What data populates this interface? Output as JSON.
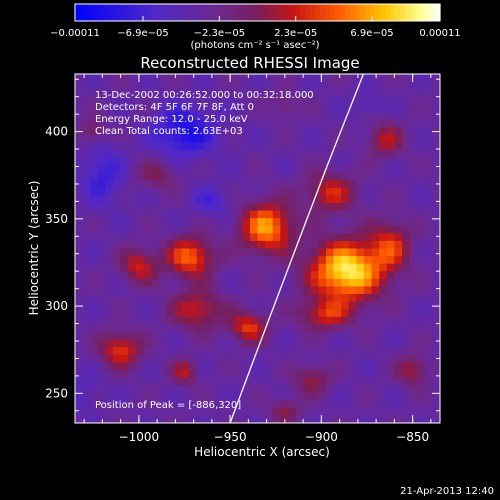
{
  "chart_data": {
    "type": "heatmap",
    "title": "Reconstructed RHESSI Image",
    "xlabel": "Heliocentric X (arcsec)",
    "ylabel": "Heliocentric Y (arcsec)",
    "xlim": [
      -1035,
      -835
    ],
    "ylim": [
      233,
      433
    ],
    "xticks": [
      {
        "value": -1000,
        "label": "−1000"
      },
      {
        "value": -950,
        "label": "−950"
      },
      {
        "value": -900,
        "label": "−900"
      },
      {
        "value": -850,
        "label": "−850"
      }
    ],
    "yticks": [
      {
        "value": 250,
        "label": "250"
      },
      {
        "value": 300,
        "label": "300"
      },
      {
        "value": 350,
        "label": "350"
      },
      {
        "value": 400,
        "label": "400"
      }
    ],
    "colorbar": {
      "range": [
        -0.00011,
        0.00011
      ],
      "ticks": [
        {
          "value": -0.00011,
          "label": "−0.00011"
        },
        {
          "value": -6.9e-05,
          "label": "−6.9e−05"
        },
        {
          "value": -2.3e-05,
          "label": "−2.3e−05"
        },
        {
          "value": 2.3e-05,
          "label": "2.3e−05"
        },
        {
          "value": 6.9e-05,
          "label": "6.9e−05"
        },
        {
          "value": 0.00011,
          "label": "0.00011"
        }
      ],
      "unit_label": "(photons cm⁻² s⁻¹ asec⁻²)"
    },
    "annotations": [
      "13-Dec-2002 00:26:52.000 to 00:32:18.000",
      "Detectors: 4F 5F 6F 7F 8F, Att 0",
      "Energy Range: 12.0 - 25.0 keV",
      "Clean     Total counts: 2.63E+03"
    ],
    "peak_text": "Position of Peak = [-886,320]",
    "peak": [
      -886,
      320
    ],
    "limb": [
      [
        -950,
        233
      ],
      [
        -935,
        275
      ],
      [
        -917,
        325
      ],
      [
        -897,
        380
      ],
      [
        -877,
        433
      ]
    ],
    "sources": [
      {
        "x": -886,
        "y": 320,
        "sx": 14,
        "sy": 12,
        "amp": 0.00013
      },
      {
        "x": -930,
        "y": 345,
        "sx": 10,
        "sy": 10,
        "amp": 0.0001
      },
      {
        "x": -972,
        "y": 328,
        "sx": 9,
        "sy": 8,
        "amp": 8.5e-05
      },
      {
        "x": -1000,
        "y": 323,
        "sx": 7,
        "sy": 7,
        "amp": 6e-05
      },
      {
        "x": -968,
        "y": 298,
        "sx": 10,
        "sy": 8,
        "amp": 6e-05
      },
      {
        "x": -940,
        "y": 288,
        "sx": 7,
        "sy": 6,
        "amp": 7e-05
      },
      {
        "x": -898,
        "y": 295,
        "sx": 10,
        "sy": 6,
        "amp": 6e-05
      },
      {
        "x": -895,
        "y": 365,
        "sx": 10,
        "sy": 8,
        "amp": 6e-05
      },
      {
        "x": -865,
        "y": 395,
        "sx": 7,
        "sy": 7,
        "amp": 5e-05
      },
      {
        "x": -862,
        "y": 335,
        "sx": 8,
        "sy": 10,
        "amp": 6e-05
      },
      {
        "x": -1010,
        "y": 275,
        "sx": 8,
        "sy": 7,
        "amp": 7e-05
      },
      {
        "x": -905,
        "y": 258,
        "sx": 7,
        "sy": 6,
        "amp": 4.5e-05
      },
      {
        "x": -850,
        "y": 263,
        "sx": 6,
        "sy": 6,
        "amp": 5e-05
      },
      {
        "x": -920,
        "y": 240,
        "sx": 6,
        "sy": 5,
        "amp": 4e-05
      },
      {
        "x": -975,
        "y": 262,
        "sx": 5,
        "sy": 5,
        "amp": 5e-05
      },
      {
        "x": -920,
        "y": 415,
        "sx": 5,
        "sy": 5,
        "amp": 3e-05
      },
      {
        "x": -1025,
        "y": 400,
        "sx": 5,
        "sy": 5,
        "amp": 4e-05
      },
      {
        "x": -990,
        "y": 375,
        "sx": 8,
        "sy": 6,
        "amp": 3.5e-05
      },
      {
        "x": -1020,
        "y": 375,
        "sx": 8,
        "sy": 12,
        "amp": -4e-05
      },
      {
        "x": -975,
        "y": 400,
        "sx": 12,
        "sy": 10,
        "amp": -6e-05
      },
      {
        "x": -960,
        "y": 360,
        "sx": 8,
        "sy": 6,
        "amp": -3e-05
      },
      {
        "x": -1030,
        "y": 250,
        "sx": 6,
        "sy": 8,
        "amp": -2e-05
      },
      {
        "x": -875,
        "y": 415,
        "sx": 6,
        "sy": 5,
        "amp": -2e-05
      }
    ],
    "grid": false
  },
  "timestamp": "21-Apr-2013 12:40",
  "colors": {
    "background": "#000000",
    "foreground": "#ffffff",
    "limb": "#ffffff"
  }
}
